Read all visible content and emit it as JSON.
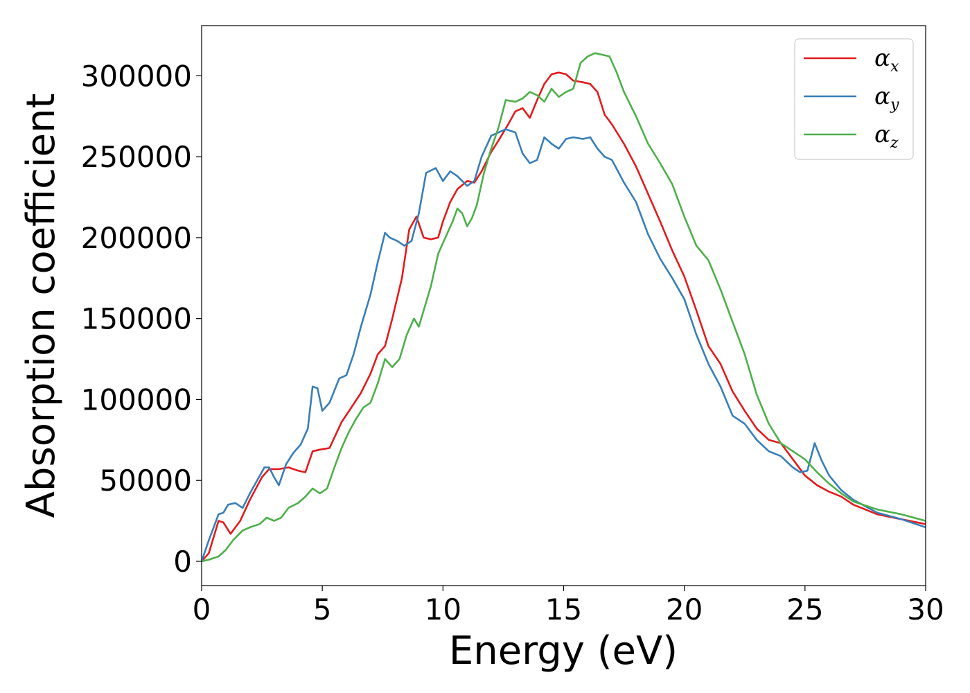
{
  "chart_data": {
    "type": "line",
    "xlabel": "Energy (eV)",
    "ylabel": "Absorption coefficient",
    "xlim": [
      0,
      30
    ],
    "ylim": [
      -15000,
      331000
    ],
    "xticks": [
      0,
      5,
      10,
      15,
      20,
      25,
      30
    ],
    "xtick_labels": [
      "0",
      "5",
      "10",
      "15",
      "20",
      "25",
      "30"
    ],
    "yticks": [
      0,
      50000,
      100000,
      150000,
      200000,
      250000,
      300000
    ],
    "ytick_labels": [
      "0",
      "50000",
      "100000",
      "150000",
      "200000",
      "250000",
      "300000"
    ],
    "grid": false,
    "legend_position": "top-right",
    "colors": {
      "alpha_x": "#e41a1c",
      "alpha_y": "#377eb8",
      "alpha_z": "#4daf4a"
    },
    "series": [
      {
        "name": "α_x",
        "symbol": "α",
        "subscript": "x",
        "color": "#e41a1c",
        "x": [
          0,
          0.3,
          0.7,
          0.9,
          1.2,
          1.6,
          2.0,
          2.5,
          2.8,
          3.2,
          3.6,
          4.0,
          4.3,
          4.6,
          4.9,
          5.3,
          5.8,
          6.2,
          6.6,
          7.0,
          7.3,
          7.6,
          7.9,
          8.3,
          8.6,
          8.9,
          9.2,
          9.5,
          9.8,
          10.0,
          10.3,
          10.6,
          11.0,
          11.3,
          11.6,
          12.0,
          12.3,
          12.7,
          13.0,
          13.3,
          13.6,
          13.9,
          14.2,
          14.5,
          14.8,
          15.1,
          15.4,
          15.8,
          16.1,
          16.4,
          16.7,
          17.0,
          17.5,
          18.0,
          18.5,
          19.0,
          19.5,
          20.0,
          20.5,
          21.0,
          21.5,
          22.0,
          22.5,
          23.0,
          23.5,
          24.0,
          24.5,
          25.0,
          25.5,
          26.0,
          26.5,
          27.0,
          28.0,
          29.0,
          30.0
        ],
        "y": [
          0,
          5000,
          25000,
          24000,
          17000,
          25000,
          38000,
          52000,
          57000,
          57000,
          58000,
          56000,
          55000,
          68000,
          69000,
          70000,
          86000,
          95000,
          104000,
          116000,
          128000,
          133000,
          150000,
          175000,
          205000,
          213000,
          200000,
          199000,
          200000,
          210000,
          222000,
          230000,
          235000,
          234000,
          241000,
          253000,
          260000,
          270000,
          278000,
          280000,
          274000,
          285000,
          295000,
          301000,
          302000,
          301000,
          297000,
          296000,
          295000,
          290000,
          276000,
          270000,
          258000,
          244000,
          227000,
          210000,
          192000,
          176000,
          155000,
          133000,
          122000,
          105000,
          93000,
          82000,
          75000,
          73000,
          63000,
          53000,
          47000,
          43000,
          40000,
          35000,
          29000,
          26000,
          23000
        ]
      },
      {
        "name": "α_y",
        "symbol": "α",
        "subscript": "y",
        "color": "#377eb8",
        "x": [
          0,
          0.3,
          0.7,
          0.9,
          1.1,
          1.4,
          1.7,
          2.0,
          2.3,
          2.6,
          2.8,
          3.0,
          3.2,
          3.5,
          3.8,
          4.1,
          4.4,
          4.6,
          4.8,
          5.0,
          5.3,
          5.7,
          6.0,
          6.3,
          6.6,
          7.0,
          7.3,
          7.6,
          7.8,
          8.1,
          8.4,
          8.7,
          9.0,
          9.3,
          9.7,
          10.0,
          10.3,
          10.6,
          11.0,
          11.3,
          11.6,
          12.0,
          12.3,
          12.6,
          13.0,
          13.3,
          13.6,
          13.9,
          14.2,
          14.5,
          14.8,
          15.1,
          15.4,
          15.8,
          16.1,
          16.4,
          16.7,
          17.0,
          17.5,
          18.0,
          18.5,
          19.0,
          19.5,
          20.0,
          20.5,
          21.0,
          21.5,
          22.0,
          22.5,
          23.0,
          23.5,
          24.0,
          24.5,
          24.8,
          25.1,
          25.4,
          25.7,
          26.0,
          26.5,
          27.0,
          28.0,
          29.0,
          30.0
        ],
        "y": [
          0,
          13000,
          29000,
          30000,
          35000,
          36000,
          33000,
          42000,
          50000,
          58000,
          58000,
          52000,
          47000,
          60000,
          67000,
          72000,
          82000,
          108000,
          107000,
          93000,
          98000,
          113000,
          115000,
          128000,
          145000,
          165000,
          185000,
          203000,
          200000,
          198000,
          195000,
          198000,
          215000,
          240000,
          243000,
          235000,
          241000,
          238000,
          232000,
          235000,
          250000,
          263000,
          265000,
          267000,
          265000,
          252000,
          246000,
          248000,
          262000,
          258000,
          255000,
          261000,
          262000,
          261000,
          262000,
          255000,
          250000,
          248000,
          234000,
          222000,
          202000,
          187000,
          175000,
          162000,
          140000,
          122000,
          108000,
          90000,
          85000,
          75000,
          68000,
          65000,
          58000,
          55000,
          56000,
          73000,
          62000,
          53000,
          44000,
          38000,
          30000,
          26000,
          21000
        ]
      },
      {
        "name": "α_z",
        "symbol": "α",
        "subscript": "z",
        "color": "#4daf4a",
        "x": [
          0,
          0.3,
          0.7,
          1.0,
          1.3,
          1.7,
          2.0,
          2.4,
          2.7,
          3.0,
          3.3,
          3.6,
          4.0,
          4.3,
          4.6,
          4.9,
          5.2,
          5.5,
          5.8,
          6.1,
          6.4,
          6.7,
          7.0,
          7.3,
          7.6,
          7.9,
          8.2,
          8.5,
          8.8,
          9.0,
          9.2,
          9.5,
          9.8,
          10.1,
          10.4,
          10.6,
          10.8,
          11.0,
          11.2,
          11.4,
          11.7,
          12.0,
          12.3,
          12.6,
          13.0,
          13.3,
          13.6,
          13.9,
          14.2,
          14.5,
          14.8,
          15.1,
          15.4,
          15.7,
          16.0,
          16.3,
          16.6,
          16.9,
          17.2,
          17.5,
          18.0,
          18.5,
          19.0,
          19.5,
          20.0,
          20.5,
          21.0,
          21.5,
          22.0,
          22.5,
          23.0,
          23.5,
          24.0,
          24.5,
          25.0,
          25.5,
          26.0,
          26.5,
          27.0,
          28.0,
          29.0,
          30.0
        ],
        "y": [
          0,
          1000,
          3000,
          7000,
          13000,
          19000,
          21000,
          23000,
          27000,
          25000,
          27000,
          33000,
          36000,
          40000,
          45000,
          42000,
          45000,
          58000,
          70000,
          80000,
          88000,
          95000,
          98000,
          110000,
          125000,
          120000,
          125000,
          140000,
          150000,
          145000,
          155000,
          170000,
          190000,
          200000,
          210000,
          218000,
          215000,
          207000,
          212000,
          220000,
          240000,
          255000,
          268000,
          285000,
          284000,
          286000,
          290000,
          288000,
          284000,
          292000,
          287000,
          290000,
          292000,
          308000,
          312000,
          314000,
          313000,
          312000,
          302000,
          290000,
          275000,
          258000,
          246000,
          233000,
          213000,
          195000,
          186000,
          168000,
          148000,
          128000,
          103000,
          85000,
          73000,
          68000,
          63000,
          55000,
          48000,
          42000,
          37000,
          32000,
          29000,
          25000
        ]
      }
    ]
  }
}
